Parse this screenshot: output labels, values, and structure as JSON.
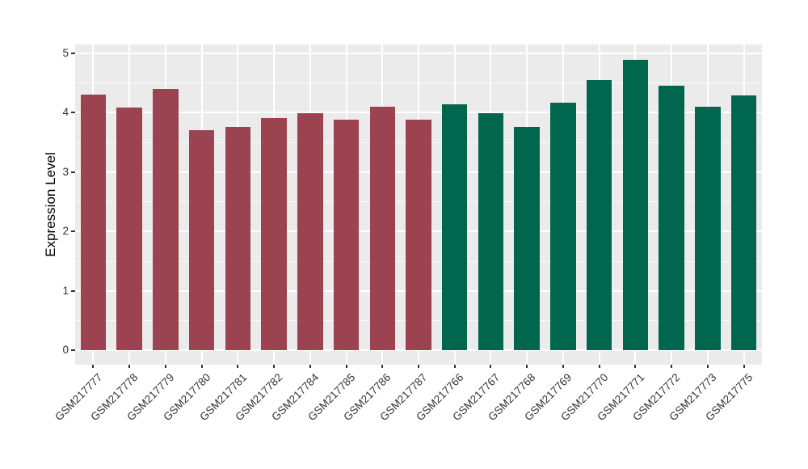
{
  "chart_data": {
    "type": "bar",
    "title": "",
    "xlabel": "",
    "ylabel": "Expression Level",
    "legend_position": "none",
    "grid": true,
    "panel_background": "#EBEBEB",
    "gridline_color": "#FFFFFF",
    "y_ticks": [
      0,
      1,
      2,
      3,
      4,
      5
    ],
    "y_minor_ticks": [
      0.5,
      1.5,
      2.5,
      3.5,
      4.5
    ],
    "ylim": [
      -0.25,
      5.15
    ],
    "x_tick_angle_deg": 45,
    "group_colors": {
      "group1": "#9C4351",
      "group2": "#00664D"
    },
    "bars": [
      {
        "label": "GSM217777",
        "value": 4.3,
        "group": "group1"
      },
      {
        "label": "GSM217778",
        "value": 4.08,
        "group": "group1"
      },
      {
        "label": "GSM217779",
        "value": 4.39,
        "group": "group1"
      },
      {
        "label": "GSM217780",
        "value": 3.7,
        "group": "group1"
      },
      {
        "label": "GSM217781",
        "value": 3.75,
        "group": "group1"
      },
      {
        "label": "GSM217782",
        "value": 3.9,
        "group": "group1"
      },
      {
        "label": "GSM217784",
        "value": 3.98,
        "group": "group1"
      },
      {
        "label": "GSM217785",
        "value": 3.88,
        "group": "group1"
      },
      {
        "label": "GSM217786",
        "value": 4.1,
        "group": "group1"
      },
      {
        "label": "GSM217787",
        "value": 3.88,
        "group": "group1"
      },
      {
        "label": "GSM217766",
        "value": 4.14,
        "group": "group2"
      },
      {
        "label": "GSM217767",
        "value": 3.99,
        "group": "group2"
      },
      {
        "label": "GSM217768",
        "value": 3.76,
        "group": "group2"
      },
      {
        "label": "GSM217769",
        "value": 4.16,
        "group": "group2"
      },
      {
        "label": "GSM217770",
        "value": 4.54,
        "group": "group2"
      },
      {
        "label": "GSM217771",
        "value": 4.88,
        "group": "group2"
      },
      {
        "label": "GSM217772",
        "value": 4.45,
        "group": "group2"
      },
      {
        "label": "GSM217773",
        "value": 4.1,
        "group": "group2"
      },
      {
        "label": "GSM217775",
        "value": 4.29,
        "group": "group2"
      }
    ]
  }
}
